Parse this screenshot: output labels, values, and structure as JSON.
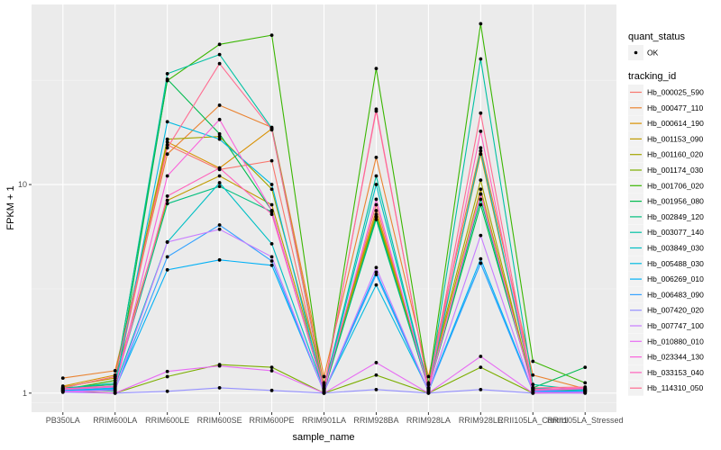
{
  "chart_data": {
    "type": "line",
    "title": "",
    "xlabel": "sample_name",
    "ylabel": "FPKM + 1",
    "yscale": "log10",
    "ylim": [
      0.81,
      73
    ],
    "yticks": [
      1,
      10
    ],
    "ytick_labels": [
      "1",
      "10"
    ],
    "grid": true,
    "categories": [
      "PB350LA",
      "RRIM600LA",
      "RRIM600LE",
      "RRIM600SE",
      "RRIM600PE",
      "RRIM901LA",
      "RRIM928BA",
      "RRIM928LA",
      "RRIM928LE",
      "RRII105LA_Control",
      "RRII105LA_Stressed"
    ],
    "legend_position": "right",
    "shape_legend": {
      "title": "quant_status",
      "entries": [
        "OK"
      ]
    },
    "color_legend_title": "tracking_id",
    "series": [
      {
        "name": "Hb_000025_590",
        "color": "#F8766D",
        "values": [
          1.05,
          1.1,
          15.5,
          11.8,
          13.0,
          1.05,
          8.0,
          1.05,
          9.0,
          1.05,
          1.05
        ]
      },
      {
        "name": "Hb_000477_110",
        "color": "#EA8331",
        "values": [
          1.18,
          1.28,
          14.0,
          24.0,
          18.8,
          1.2,
          13.5,
          1.2,
          15.0,
          1.22,
          1.05
        ]
      },
      {
        "name": "Hb_000614_190",
        "color": "#D89000",
        "values": [
          1.08,
          1.22,
          16.0,
          12.0,
          18.5,
          1.1,
          7.5,
          1.1,
          14.0,
          1.05,
          1.04
        ]
      },
      {
        "name": "Hb_001153_090",
        "color": "#C09B00",
        "values": [
          1.07,
          1.18,
          8.4,
          11.0,
          8.0,
          1.08,
          7.0,
          1.1,
          9.5,
          1.04,
          1.04
        ]
      },
      {
        "name": "Hb_001160_020",
        "color": "#A3A500",
        "values": [
          1.06,
          1.2,
          16.5,
          17.0,
          9.5,
          1.12,
          7.2,
          1.12,
          10.5,
          1.04,
          1.03
        ]
      },
      {
        "name": "Hb_001174_030",
        "color": "#7CAE00",
        "values": [
          1.03,
          1.0,
          1.2,
          1.37,
          1.33,
          1.0,
          1.22,
          1.0,
          1.33,
          1.0,
          1.02
        ]
      },
      {
        "name": "Hb_001706_020",
        "color": "#39B600",
        "values": [
          1.04,
          1.15,
          31.5,
          47.0,
          52.0,
          1.0,
          36.0,
          1.1,
          59.0,
          1.42,
          1.12
        ]
      },
      {
        "name": "Hb_001956_080",
        "color": "#00BB4E",
        "values": [
          1.05,
          1.02,
          32.0,
          17.5,
          7.5,
          1.02,
          7.0,
          1.05,
          8.0,
          1.06,
          1.33
        ]
      },
      {
        "name": "Hb_002849_120",
        "color": "#00BF7D",
        "values": [
          1.06,
          1.1,
          8.1,
          9.8,
          7.4,
          1.05,
          6.8,
          1.06,
          8.5,
          1.05,
          1.04
        ]
      },
      {
        "name": "Hb_003077_140",
        "color": "#00C1A3",
        "values": [
          1.05,
          1.12,
          34.0,
          42.0,
          18.6,
          1.04,
          11.0,
          1.05,
          40.0,
          1.1,
          1.03
        ]
      },
      {
        "name": "Hb_003849_030",
        "color": "#00BFC4",
        "values": [
          1.04,
          1.08,
          5.3,
          10.2,
          5.2,
          1.03,
          10.0,
          1.05,
          14.5,
          1.06,
          1.03
        ]
      },
      {
        "name": "Hb_005488_030",
        "color": "#00BAE0",
        "values": [
          1.03,
          1.06,
          20.0,
          16.5,
          10.0,
          1.02,
          3.3,
          1.03,
          4.2,
          1.03,
          1.02
        ]
      },
      {
        "name": "Hb_006269_010",
        "color": "#00B0F6",
        "values": [
          1.03,
          1.05,
          3.9,
          4.35,
          4.1,
          1.02,
          3.8,
          1.03,
          4.4,
          1.03,
          1.02
        ]
      },
      {
        "name": "Hb_006483_090",
        "color": "#35A2FF",
        "values": [
          1.02,
          1.04,
          4.5,
          6.4,
          4.3,
          1.01,
          3.7,
          1.02,
          4.2,
          1.02,
          1.01
        ]
      },
      {
        "name": "Hb_007420_020",
        "color": "#9590FF",
        "values": [
          1.01,
          1.0,
          1.02,
          1.06,
          1.03,
          1.0,
          1.04,
          1.0,
          1.04,
          1.0,
          1.0
        ]
      },
      {
        "name": "Hb_007747_100",
        "color": "#C77CFF",
        "values": [
          1.02,
          1.03,
          5.3,
          6.1,
          4.5,
          1.01,
          4.0,
          1.02,
          5.7,
          1.01,
          1.0
        ]
      },
      {
        "name": "Hb_010880_010",
        "color": "#E76BF3",
        "values": [
          1.02,
          1.0,
          1.27,
          1.35,
          1.28,
          1.0,
          1.4,
          1.0,
          1.5,
          1.0,
          1.01
        ]
      },
      {
        "name": "Hb_023344_130",
        "color": "#FA62DB",
        "values": [
          1.04,
          1.07,
          11.0,
          20.5,
          7.5,
          1.03,
          8.5,
          1.04,
          9.0,
          1.03,
          1.05
        ]
      },
      {
        "name": "Hb_033153_040",
        "color": "#FF62BC",
        "values": [
          1.05,
          1.08,
          8.8,
          12.0,
          7.2,
          1.04,
          23.0,
          1.05,
          18.0,
          1.04,
          1.06
        ]
      },
      {
        "name": "Hb_114310_050",
        "color": "#FF6C91",
        "values": [
          1.06,
          1.2,
          15.0,
          38.0,
          18.3,
          1.06,
          22.5,
          1.06,
          22.0,
          1.06,
          1.07
        ]
      }
    ]
  }
}
